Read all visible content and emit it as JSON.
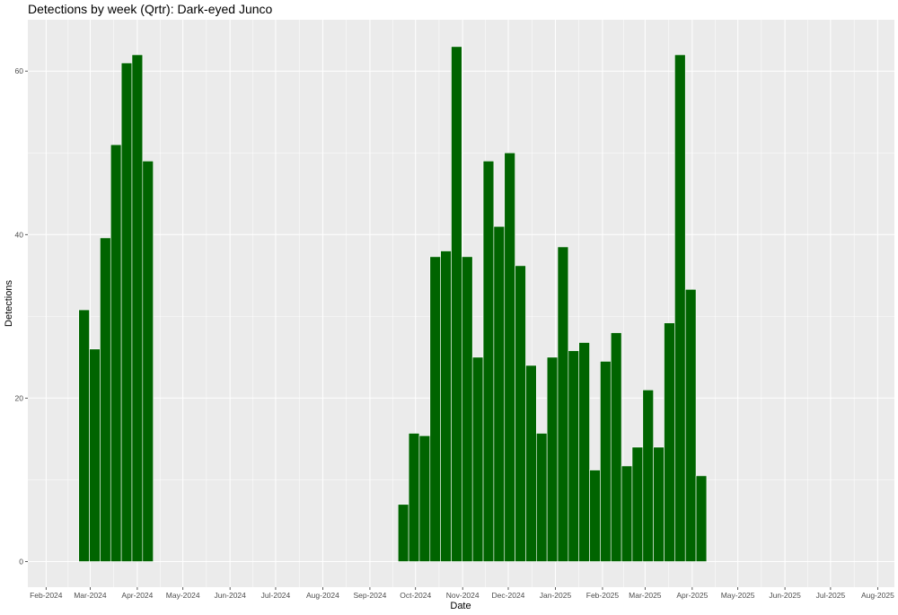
{
  "chart_data": {
    "type": "bar",
    "title": "Detections by week (Qrtr): Dark-eyed Junco",
    "xlabel": "Date",
    "ylabel": "Detections",
    "ylim": [
      0,
      63
    ],
    "xlim": [
      "2024-01-20",
      "2025-08-12"
    ],
    "y_ticks": [
      0,
      20,
      40,
      60
    ],
    "x_ticks": [
      {
        "date": "2024-02-01",
        "label": "Feb-2024"
      },
      {
        "date": "2024-03-01",
        "label": "Mar-2024"
      },
      {
        "date": "2024-04-01",
        "label": "Apr-2024"
      },
      {
        "date": "2024-05-01",
        "label": "May-2024"
      },
      {
        "date": "2024-06-01",
        "label": "Jun-2024"
      },
      {
        "date": "2024-07-01",
        "label": "Jul-2024"
      },
      {
        "date": "2024-08-01",
        "label": "Aug-2024"
      },
      {
        "date": "2024-09-01",
        "label": "Sep-2024"
      },
      {
        "date": "2024-10-01",
        "label": "Oct-2024"
      },
      {
        "date": "2024-11-01",
        "label": "Nov-2024"
      },
      {
        "date": "2024-12-01",
        "label": "Dec-2024"
      },
      {
        "date": "2025-01-01",
        "label": "Jan-2025"
      },
      {
        "date": "2025-02-01",
        "label": "Feb-2025"
      },
      {
        "date": "2025-03-01",
        "label": "Mar-2025"
      },
      {
        "date": "2025-04-01",
        "label": "Apr-2025"
      },
      {
        "date": "2025-05-01",
        "label": "May-2025"
      },
      {
        "date": "2025-06-01",
        "label": "Jun-2025"
      },
      {
        "date": "2025-07-01",
        "label": "Jul-2025"
      },
      {
        "date": "2025-08-01",
        "label": "Aug-2025"
      }
    ],
    "grid": true,
    "bar_width_days": 7,
    "bars": [
      {
        "week": "2024-02-26",
        "value": 30.8
      },
      {
        "week": "2024-03-04",
        "value": 26.0
      },
      {
        "week": "2024-03-11",
        "value": 39.6
      },
      {
        "week": "2024-03-18",
        "value": 51.0
      },
      {
        "week": "2024-03-25",
        "value": 61.0
      },
      {
        "week": "2024-04-01",
        "value": 62.0
      },
      {
        "week": "2024-04-08",
        "value": 49.0
      },
      {
        "week": "2024-09-23",
        "value": 7.0
      },
      {
        "week": "2024-09-30",
        "value": 15.7
      },
      {
        "week": "2024-10-07",
        "value": 15.4
      },
      {
        "week": "2024-10-14",
        "value": 37.3
      },
      {
        "week": "2024-10-21",
        "value": 38.0
      },
      {
        "week": "2024-10-28",
        "value": 63.0
      },
      {
        "week": "2024-11-04",
        "value": 37.3
      },
      {
        "week": "2024-11-11",
        "value": 25.0
      },
      {
        "week": "2024-11-18",
        "value": 49.0
      },
      {
        "week": "2024-11-25",
        "value": 41.0
      },
      {
        "week": "2024-12-02",
        "value": 50.0
      },
      {
        "week": "2024-12-09",
        "value": 36.2
      },
      {
        "week": "2024-12-16",
        "value": 24.0
      },
      {
        "week": "2024-12-23",
        "value": 15.7
      },
      {
        "week": "2024-12-30",
        "value": 25.0
      },
      {
        "week": "2025-01-06",
        "value": 38.5
      },
      {
        "week": "2025-01-13",
        "value": 25.8
      },
      {
        "week": "2025-01-20",
        "value": 26.8
      },
      {
        "week": "2025-01-27",
        "value": 11.2
      },
      {
        "week": "2025-02-03",
        "value": 24.5
      },
      {
        "week": "2025-02-10",
        "value": 28.0
      },
      {
        "week": "2025-02-17",
        "value": 11.7
      },
      {
        "week": "2025-02-24",
        "value": 14.0
      },
      {
        "week": "2025-03-03",
        "value": 21.0
      },
      {
        "week": "2025-03-10",
        "value": 14.0
      },
      {
        "week": "2025-03-17",
        "value": 29.2
      },
      {
        "week": "2025-03-24",
        "value": 62.0
      },
      {
        "week": "2025-03-31",
        "value": 33.3
      },
      {
        "week": "2025-04-07",
        "value": 10.5
      }
    ],
    "colors": {
      "bar": "#006400",
      "panel": "#ebebeb",
      "grid": "#ffffff"
    }
  }
}
